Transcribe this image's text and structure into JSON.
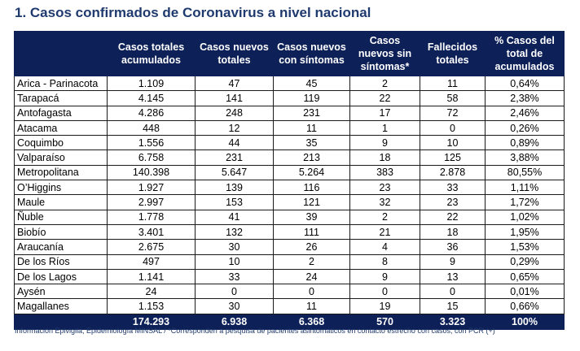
{
  "title": "1. Casos confirmados de Coronavirus a nivel nacional",
  "columns": [
    "",
    "Casos totales acumulados",
    "Casos nuevos totales",
    "Casos nuevos con síntomas",
    "Casos nuevos sin síntomas*",
    "Fallecidos totales",
    "% Casos del total de acumulados"
  ],
  "rows": [
    [
      "Arica - Parinacota",
      "1.109",
      "47",
      "45",
      "2",
      "11",
      "0,64%"
    ],
    [
      "Tarapacá",
      "4.145",
      "141",
      "119",
      "22",
      "58",
      "2,38%"
    ],
    [
      "Antofagasta",
      "4.286",
      "248",
      "231",
      "17",
      "72",
      "2,46%"
    ],
    [
      "Atacama",
      "448",
      "12",
      "11",
      "1",
      "0",
      "0,26%"
    ],
    [
      "Coquimbo",
      "1.556",
      "44",
      "35",
      "9",
      "10",
      "0,89%"
    ],
    [
      "Valparaíso",
      "6.758",
      "231",
      "213",
      "18",
      "125",
      "3,88%"
    ],
    [
      "Metropolitana",
      "140.398",
      "5.647",
      "5.264",
      "383",
      "2.878",
      "80,55%"
    ],
    [
      "O’Higgins",
      "1.927",
      "139",
      "116",
      "23",
      "33",
      "1,11%"
    ],
    [
      "Maule",
      "2.997",
      "153",
      "121",
      "32",
      "23",
      "1,72%"
    ],
    [
      "Ñuble",
      "1.778",
      "41",
      "39",
      "2",
      "22",
      "1,02%"
    ],
    [
      "Biobío",
      "3.401",
      "132",
      "111",
      "21",
      "18",
      "1,95%"
    ],
    [
      "Araucanía",
      "2.675",
      "30",
      "26",
      "4",
      "36",
      "1,53%"
    ],
    [
      "De los Ríos",
      "497",
      "10",
      "2",
      "8",
      "9",
      "0,29%"
    ],
    [
      "De los Lagos",
      "1.141",
      "33",
      "24",
      "9",
      "13",
      "0,65%"
    ],
    [
      "Aysén",
      "24",
      "0",
      "0",
      "0",
      "0",
      "0,01%"
    ],
    [
      "Magallanes",
      "1.153",
      "30",
      "11",
      "19",
      "15",
      "0,66%"
    ]
  ],
  "totals": [
    "",
    "174.293",
    "6.938",
    "6.368",
    "570",
    "3.323",
    "100%"
  ],
  "footnote": "Información Epivigila, Epidemiología MINSAL / *Corresponden a pesquisa de pacientes asintomáticos en contacto estrecho con casos, con PCR (+)",
  "colors": {
    "header": "#0d2057",
    "title": "#1f3a6e"
  }
}
